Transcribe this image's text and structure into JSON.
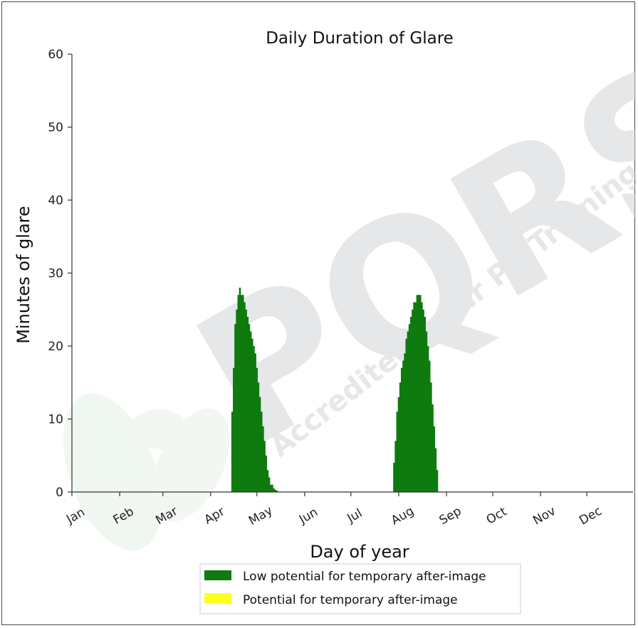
{
  "chart_data": {
    "type": "area",
    "title": "Daily Duration of Glare",
    "xlabel": "Day of year",
    "ylabel": "Minutes of glare",
    "ylim": [
      0,
      60
    ],
    "yticks": [
      0,
      10,
      20,
      30,
      40,
      50,
      60
    ],
    "xlim": [
      1,
      365
    ],
    "months": [
      {
        "label": "Jan",
        "day": 1
      },
      {
        "label": "Feb",
        "day": 32
      },
      {
        "label": "Mar",
        "day": 60
      },
      {
        "label": "Apr",
        "day": 91
      },
      {
        "label": "May",
        "day": 121
      },
      {
        "label": "Jun",
        "day": 152
      },
      {
        "label": "Jul",
        "day": 182
      },
      {
        "label": "Aug",
        "day": 213
      },
      {
        "label": "Sep",
        "day": 244
      },
      {
        "label": "Oct",
        "day": 274
      },
      {
        "label": "Nov",
        "day": 305
      },
      {
        "label": "Dec",
        "day": 335
      }
    ],
    "grid": false,
    "legend_position": "bottom",
    "series": [
      {
        "name": "Low potential for temporary after-image",
        "color": "#0f7a0f",
        "x": [
          105,
          106,
          107,
          108,
          109,
          110,
          111,
          112,
          113,
          114,
          115,
          116,
          117,
          118,
          119,
          120,
          121,
          122,
          123,
          124,
          125,
          126,
          127,
          128,
          129,
          130,
          131,
          132,
          133,
          134,
          135,
          210,
          211,
          212,
          213,
          214,
          215,
          216,
          217,
          218,
          219,
          220,
          221,
          222,
          223,
          224,
          225,
          226,
          227,
          228,
          229,
          230,
          231,
          232,
          233,
          234,
          235,
          236,
          237,
          238,
          239,
          240,
          241
        ],
        "y": [
          11,
          17,
          23,
          25,
          27,
          28,
          27,
          27,
          26,
          25,
          24,
          23,
          22,
          21,
          20,
          19,
          17,
          15,
          13,
          11,
          9,
          7,
          5,
          3,
          2,
          1,
          1,
          0.5,
          0.3,
          0.2,
          0,
          4,
          7,
          11,
          13,
          15,
          17,
          18,
          19,
          21,
          22,
          23,
          24,
          25,
          26,
          26,
          27,
          27,
          27,
          26,
          25,
          24,
          22,
          20,
          18,
          15,
          12,
          9,
          6,
          3,
          0,
          0,
          0
        ]
      },
      {
        "name": "Potential for temporary after-image",
        "color": "#ffff1a",
        "x": [],
        "y": []
      }
    ]
  },
  "watermark": {
    "text": "Accredited Solar PV Training",
    "logo": "PQRS"
  }
}
